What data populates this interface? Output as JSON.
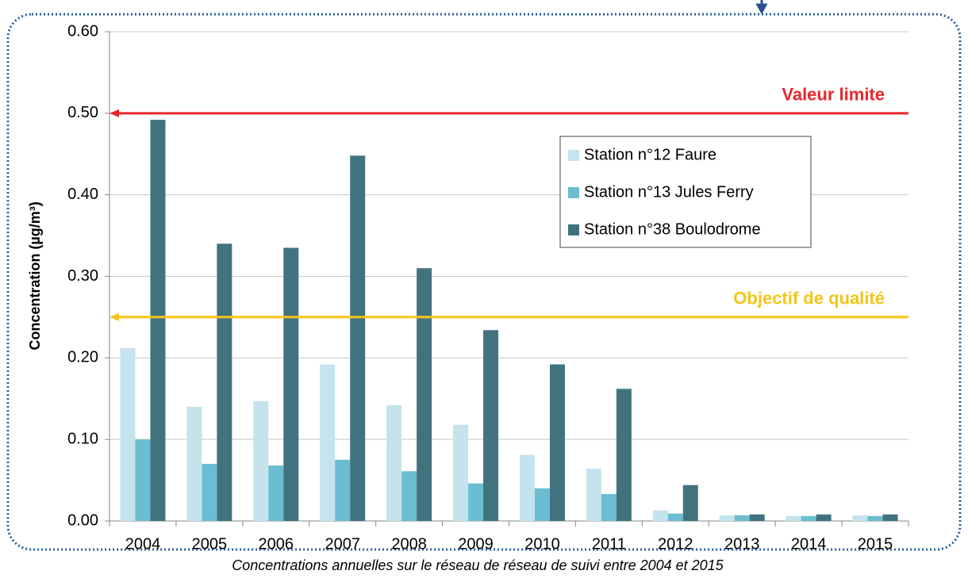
{
  "chart_data": {
    "type": "bar",
    "caption": "Concentrations annuelles sur le réseau de réseau de suivi entre 2004 et 2015",
    "y_label": "Concentration (µg/m³)",
    "categories": [
      "2004",
      "2005",
      "2006",
      "2007",
      "2008",
      "2009",
      "2010",
      "2011",
      "2012",
      "2013",
      "2014",
      "2015"
    ],
    "series": [
      {
        "name": "Station n°12 Faure",
        "color": "#c5e3ec",
        "values": [
          0.212,
          0.14,
          0.147,
          0.192,
          0.142,
          0.118,
          0.081,
          0.064,
          0.013,
          0.007,
          0.006,
          0.007
        ]
      },
      {
        "name": "Station n°13 Jules Ferry",
        "color": "#6bbdd1",
        "values": [
          0.1,
          0.07,
          0.068,
          0.075,
          0.061,
          0.046,
          0.04,
          0.033,
          0.009,
          0.007,
          0.006,
          0.006
        ]
      },
      {
        "name": "Station n°38 Boulodrome",
        "color": "#41737f",
        "values": [
          0.492,
          0.34,
          0.335,
          0.448,
          0.31,
          0.234,
          0.192,
          0.162,
          0.044,
          0.008,
          0.008,
          0.008
        ]
      }
    ],
    "reference_lines": [
      {
        "label": "Valeur limite",
        "value": 0.5,
        "color": "#e8262a"
      },
      {
        "label": "Objectif de qualité",
        "value": 0.25,
        "color": "#f5c518"
      }
    ],
    "ylim": [
      0,
      0.6
    ],
    "yticks": [
      {
        "value": 0,
        "label": "0.00"
      },
      {
        "value": 0.1,
        "label": "0.10"
      },
      {
        "value": 0.2,
        "label": "0.20"
      },
      {
        "value": 0.3,
        "label": "0.30"
      },
      {
        "value": 0.4,
        "label": "0.40"
      },
      {
        "value": 0.5,
        "label": "0.50"
      },
      {
        "value": 0.6,
        "label": "0.60"
      }
    ],
    "grid": true,
    "legend": "upper right"
  }
}
